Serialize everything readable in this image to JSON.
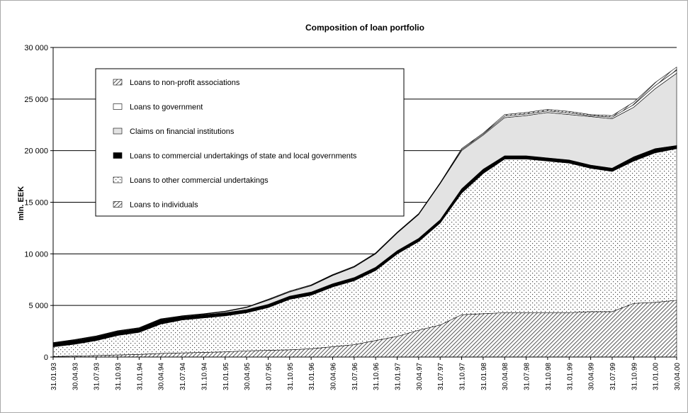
{
  "chart_data": {
    "type": "stacked_area",
    "title": "Composition of loan portfolio",
    "y_label": "mln. EEK",
    "categories": [
      "31.01.93",
      "30.04.93",
      "31.07.93",
      "31.10.93",
      "31.01.94",
      "30.04.94",
      "31.07.94",
      "31.10.94",
      "31.01.95",
      "30.04.95",
      "31.07.95",
      "31.10.95",
      "31.01.96",
      "30.04.96",
      "31.07.96",
      "31.10.96",
      "31.01.97",
      "30.04.97",
      "31.07.97",
      "31.10.97",
      "31.01.98",
      "30.04.98",
      "31.07.98",
      "31.10.98",
      "31.01.99",
      "30.04.99",
      "31.07.99",
      "31.10.99",
      "31.01.00",
      "30.04.00"
    ],
    "series": [
      {
        "name": "Loans to individuals",
        "color": "#555555",
        "pattern": "hatch",
        "values": [
          50,
          100,
          150,
          200,
          250,
          350,
          400,
          450,
          500,
          600,
          650,
          700,
          800,
          1000,
          1200,
          1600,
          2000,
          2600,
          3100,
          4100,
          4200,
          4300,
          4300,
          4300,
          4300,
          4400,
          4400,
          5200,
          5300,
          5500
        ]
      },
      {
        "name": "Loans to other commercial undertakings",
        "color": "#555555",
        "pattern": "dots",
        "values": [
          950,
          1150,
          1450,
          1900,
          2150,
          2850,
          3200,
          3350,
          3500,
          3700,
          4150,
          4900,
          5200,
          5800,
          6200,
          6800,
          8000,
          8600,
          9900,
          11800,
          13600,
          14900,
          14900,
          14700,
          14500,
          13900,
          13600,
          13800,
          14500,
          14700
        ]
      },
      {
        "name": "Loans to commercial undertakings of state and local governments",
        "color": "#000000",
        "values": [
          350,
          350,
          350,
          350,
          350,
          400,
          300,
          300,
          300,
          300,
          300,
          300,
          300,
          300,
          300,
          300,
          300,
          300,
          300,
          400,
          400,
          300,
          300,
          300,
          300,
          300,
          300,
          400,
          400,
          300
        ]
      },
      {
        "name": "Claims on financial institutions",
        "color": "#e3e3e3",
        "values": [
          0,
          50,
          50,
          50,
          50,
          50,
          50,
          50,
          100,
          200,
          400,
          400,
          600,
          800,
          1000,
          1300,
          1700,
          2300,
          3500,
          3700,
          3300,
          3700,
          3900,
          4400,
          4400,
          4700,
          4800,
          4800,
          5800,
          7000
        ]
      },
      {
        "name": "Loans to government",
        "color": "#ffffff",
        "values": [
          25,
          25,
          25,
          25,
          25,
          25,
          25,
          25,
          25,
          25,
          50,
          50,
          50,
          50,
          50,
          50,
          50,
          50,
          50,
          100,
          100,
          150,
          150,
          150,
          150,
          100,
          150,
          250,
          300,
          300
        ]
      },
      {
        "name": "Loans to non-profit associations",
        "color": "#555555",
        "pattern": "hatch",
        "values": [
          25,
          25,
          25,
          25,
          25,
          25,
          25,
          25,
          25,
          25,
          50,
          50,
          50,
          50,
          50,
          50,
          50,
          50,
          50,
          100,
          100,
          150,
          150,
          150,
          150,
          100,
          150,
          250,
          300,
          300
        ]
      }
    ],
    "ylim": [
      0,
      30000
    ],
    "yticks": [
      0,
      {
        "value": 5000,
        "label": "5 000"
      },
      {
        "value": 10000,
        "label": "10 000"
      },
      {
        "value": 15000,
        "label": "15 000"
      },
      {
        "value": 20000,
        "label": "20 000"
      },
      {
        "value": 25000,
        "label": "25 000"
      },
      {
        "value": 30000,
        "label": "30 000"
      }
    ],
    "grid": true
  }
}
